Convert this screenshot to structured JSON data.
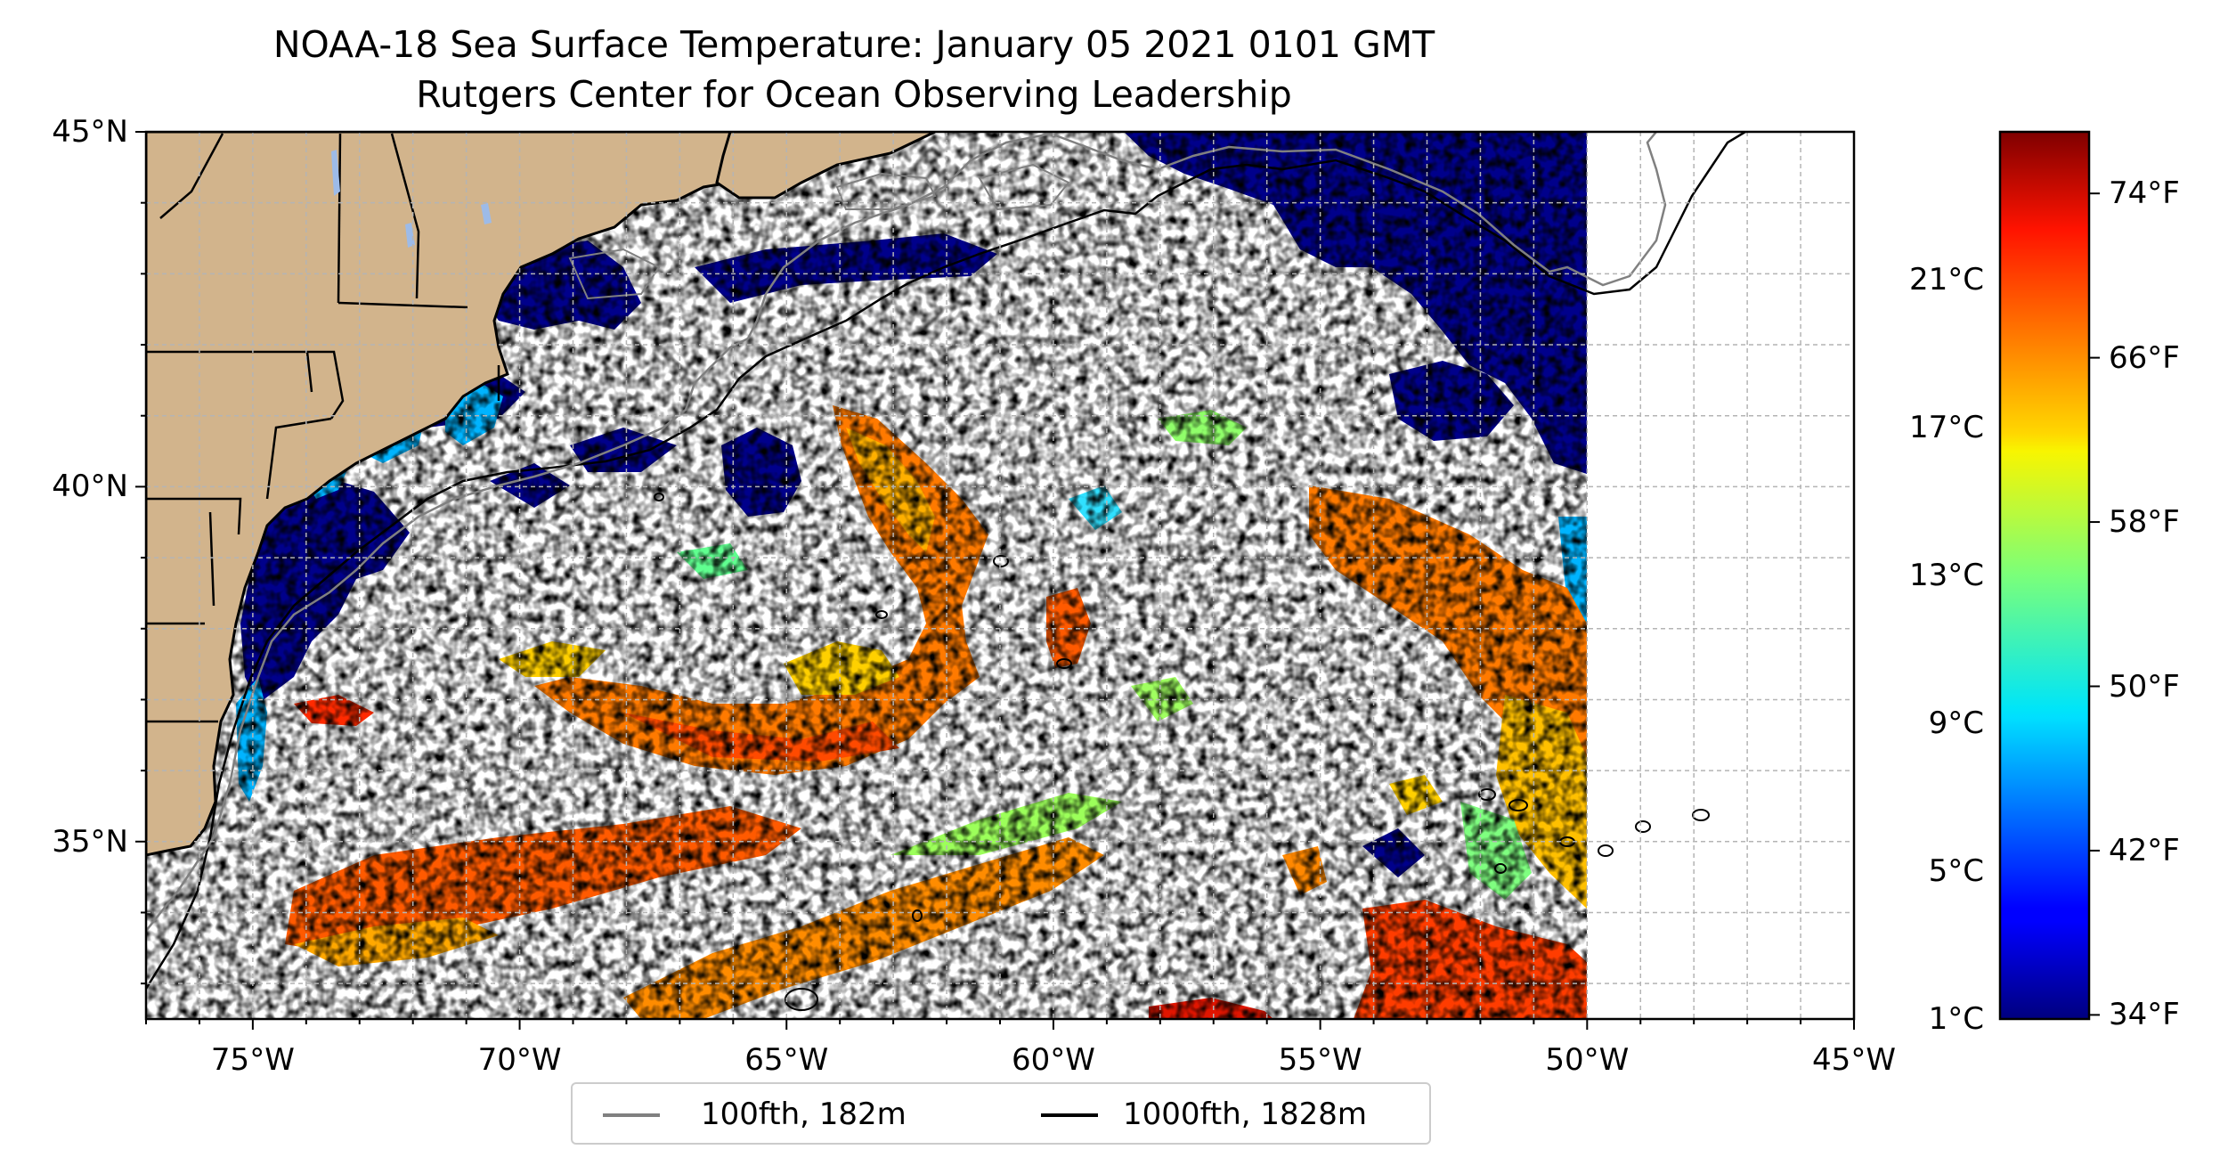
{
  "title": "NOAA-18 Sea Surface Temperature: January 05 2021 0101 GMT",
  "subtitle": "Rutgers Center for Ocean Observing Leadership",
  "map": {
    "lon_range": [
      -77,
      -45
    ],
    "lat_range": [
      32.5,
      45
    ],
    "x_ticks": [
      {
        "value": -75,
        "label": "75°W"
      },
      {
        "value": -70,
        "label": "70°W"
      },
      {
        "value": -65,
        "label": "65°W"
      },
      {
        "value": -60,
        "label": "60°W"
      },
      {
        "value": -55,
        "label": "55°W"
      },
      {
        "value": -50,
        "label": "50°W"
      },
      {
        "value": -45,
        "label": "45°W"
      }
    ],
    "y_ticks": [
      {
        "value": 45,
        "label": "45°N"
      },
      {
        "value": 40,
        "label": "40°N"
      },
      {
        "value": 35,
        "label": "35°N"
      }
    ],
    "grid": true,
    "land_color": "#d2b48c",
    "colormap": "jet"
  },
  "colorbar": {
    "celsius_ticks": [
      {
        "value": 21,
        "label": "21°C"
      },
      {
        "value": 17,
        "label": "17°C"
      },
      {
        "value": 13,
        "label": "13°C"
      },
      {
        "value": 9,
        "label": "9°C"
      },
      {
        "value": 5,
        "label": "5°C"
      },
      {
        "value": 1,
        "label": "1°C"
      }
    ],
    "fahrenheit_ticks": [
      {
        "value": 74,
        "label": "74°F"
      },
      {
        "value": 66,
        "label": "66°F"
      },
      {
        "value": 58,
        "label": "58°F"
      },
      {
        "value": 50,
        "label": "50°F"
      },
      {
        "value": 42,
        "label": "42°F"
      },
      {
        "value": 34,
        "label": "34°F"
      }
    ],
    "range_f": [
      33.8,
      77
    ]
  },
  "legend": {
    "placement": "bottom-center",
    "items": [
      {
        "label": "100fth, 182m",
        "color": "#808080"
      },
      {
        "label": "1000fth, 1828m",
        "color": "#000000"
      }
    ]
  }
}
